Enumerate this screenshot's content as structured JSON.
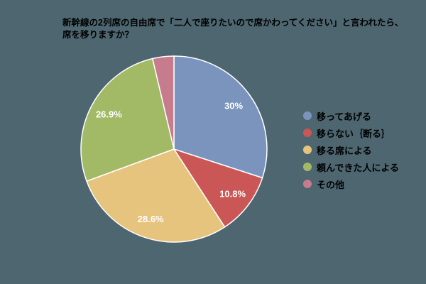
{
  "background_color": "#4d6670",
  "chart_data": {
    "type": "pie",
    "title": "新幹線の2列席の自由席で「二人で座りたいので席かわってください」と言われたら、\n席を移りますか？",
    "title_color": "#000000",
    "label_color": "#ffffff",
    "legend_position": "right",
    "start_angle_deg": 0,
    "direction": "clockwise",
    "slice_border_color": "#ffffff",
    "slices": [
      {
        "label": "移ってあげる",
        "value": 30,
        "display": "30%",
        "color": "#7b94be"
      },
      {
        "label": "移らない｛断る｝",
        "value": 10.8,
        "display": "10.8%",
        "color": "#cb5656"
      },
      {
        "label": "移る席による",
        "value": 28.6,
        "display": "28.6%",
        "color": "#e7c47d"
      },
      {
        "label": "頼んできた人による",
        "value": 26.9,
        "display": "26.9%",
        "color": "#a2ba66"
      },
      {
        "label": "その他",
        "value": 3.7,
        "display": "",
        "color": "#c67c8c"
      }
    ]
  }
}
